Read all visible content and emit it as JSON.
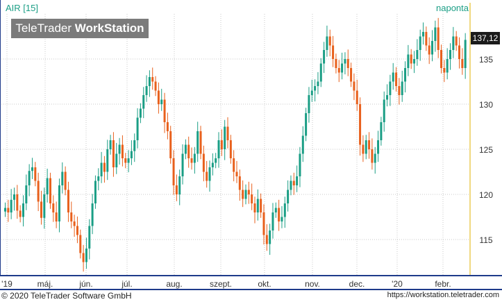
{
  "header": {
    "symbol": "AIR [15]",
    "period": "naponta"
  },
  "watermark": {
    "brand_part1": "TeleTrader ",
    "brand_part2": "WorkStation"
  },
  "price_tag": "137,12",
  "footer": {
    "copyright": "© 2020 TeleTrader Software GmbH",
    "url": "https://workstation.teletrader.com"
  },
  "colors": {
    "up": "#1a9e85",
    "down": "#e8601c",
    "grid": "#c8c8c8",
    "axis": "#1e3a8a",
    "last": "#1b1b1b"
  },
  "chart_data": {
    "type": "candlestick",
    "title": "AIR [15]",
    "interval": "naponta",
    "ylim": [
      111,
      140
    ],
    "y_ticks": [
      115,
      120,
      125,
      130,
      135
    ],
    "y_tick_labels": [
      "115",
      "120",
      "125",
      "130",
      "135"
    ],
    "x_ticks": [
      "'19",
      "máj.",
      "jún.",
      "júl.",
      "aug.",
      "szept.",
      "okt.",
      "nov.",
      "dec.",
      "'20",
      "febr."
    ],
    "grid": true,
    "last_price": 137.12,
    "close_series": [
      118.5,
      118.0,
      119.4,
      120.0,
      118.2,
      117.5,
      119.0,
      121.0,
      122.6,
      123.0,
      121.5,
      119.2,
      117.4,
      120.0,
      121.8,
      119.0,
      118.0,
      117.0,
      121.0,
      122.5,
      120.5,
      118.0,
      117.0,
      116.5,
      115.5,
      113.5,
      112.5,
      114.0,
      116.5,
      119.0,
      121.5,
      122.0,
      123.5,
      122.5,
      125.0,
      126.0,
      123.0,
      124.5,
      125.5,
      124.0,
      123.5,
      124.0,
      124.8,
      126.0,
      128.5,
      129.5,
      131.0,
      132.0,
      133.0,
      132.5,
      131.5,
      130.0,
      130.5,
      128.0,
      127.0,
      124.0,
      121.0,
      120.0,
      122.0,
      124.5,
      125.5,
      124.0,
      123.5,
      124.5,
      127.0,
      124.5,
      122.5,
      121.5,
      123.0,
      123.5,
      124.0,
      126.0,
      125.0,
      127.5,
      126.0,
      124.0,
      122.5,
      122.0,
      120.5,
      119.5,
      120.5,
      120.0,
      119.0,
      118.0,
      119.5,
      118.0,
      115.5,
      114.5,
      116.0,
      118.0,
      118.5,
      117.0,
      117.5,
      119.0,
      120.5,
      121.5,
      121.0,
      122.0,
      124.5,
      126.5,
      129.0,
      131.0,
      131.5,
      132.0,
      132.5,
      134.5,
      136.0,
      137.5,
      136.5,
      135.0,
      134.0,
      133.5,
      134.5,
      135.0,
      134.0,
      132.5,
      131.5,
      130.0,
      125.5,
      124.5,
      126.0,
      125.0,
      123.5,
      124.5,
      126.0,
      128.0,
      130.5,
      131.0,
      132.5,
      133.5,
      132.0,
      131.0,
      132.5,
      134.0,
      135.5,
      134.5,
      135.0,
      136.0,
      137.5,
      138.0,
      136.5,
      135.5,
      137.0,
      138.5,
      136.0,
      134.0,
      133.5,
      135.0,
      136.0,
      137.5,
      136.5,
      135.0,
      134.0,
      137.12
    ]
  }
}
